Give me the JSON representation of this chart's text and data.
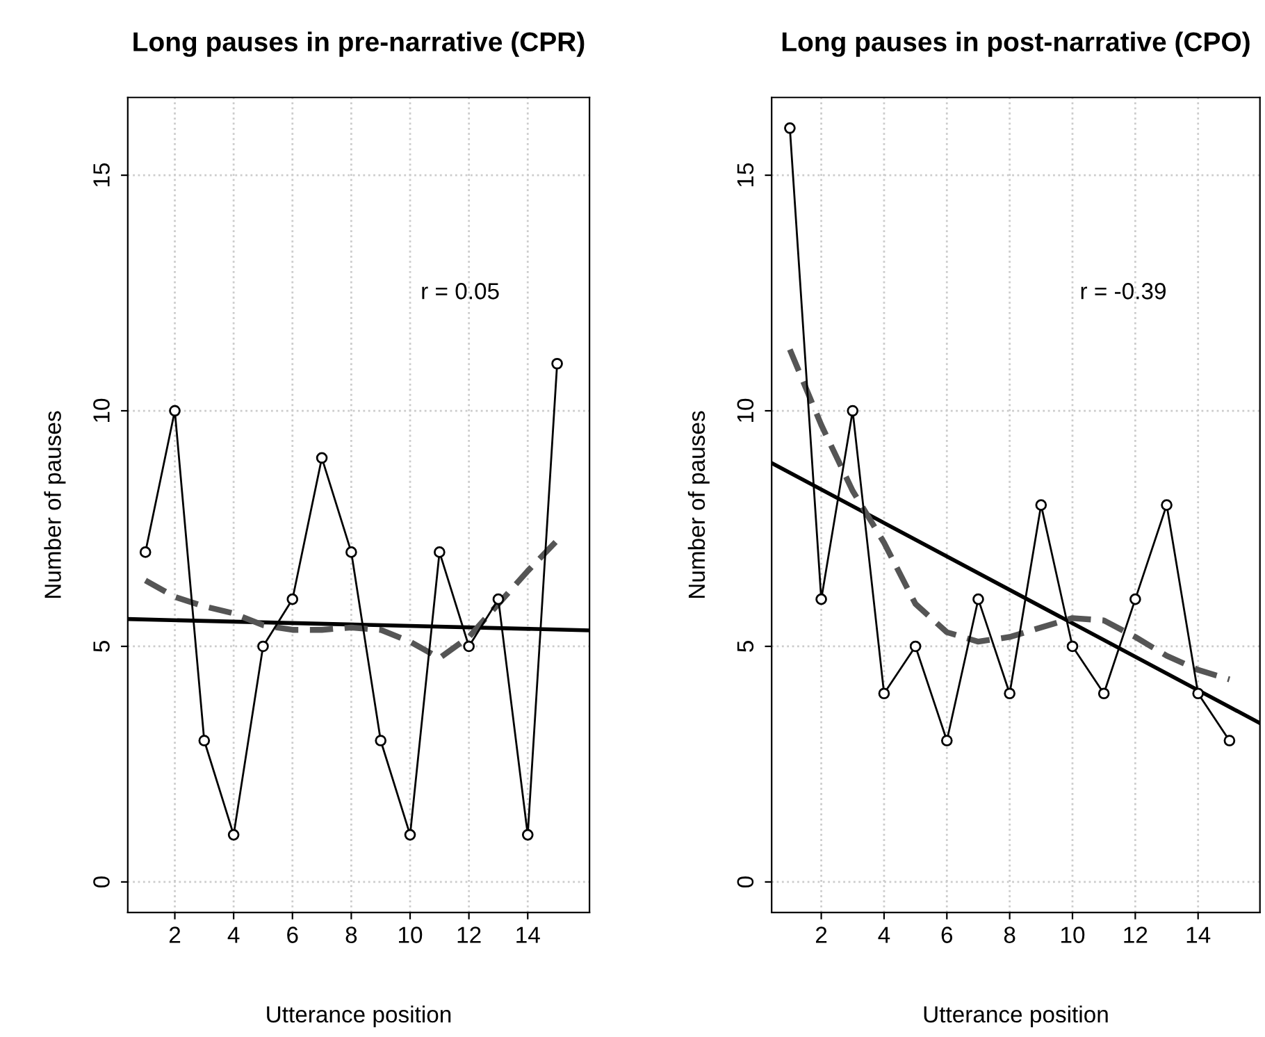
{
  "chart_data": [
    {
      "type": "line",
      "title": "Long pauses in pre-narrative (CPR)",
      "xlabel": "Utterance position",
      "ylabel": "Number of pauses",
      "xlim": [
        0.4,
        16.1
      ],
      "ylim": [
        -0.65,
        16.65
      ],
      "xticks": [
        2,
        4,
        6,
        8,
        10,
        12,
        14
      ],
      "yticks": [
        0,
        5,
        10,
        15
      ],
      "grid": true,
      "legend": false,
      "annotations": [
        "r = 0.05"
      ],
      "x": [
        1,
        2,
        3,
        4,
        5,
        6,
        7,
        8,
        9,
        10,
        11,
        12,
        13,
        14,
        15
      ],
      "series": [
        {
          "color": "#000000",
          "marker": "circle",
          "line_style": "solid",
          "values": [
            7,
            10,
            3,
            1,
            5,
            6,
            9,
            7,
            3,
            1,
            7,
            5,
            6,
            1,
            11
          ]
        },
        {
          "color": "#000000",
          "marker": "none",
          "line_style": "solid",
          "x": [
            0.4,
            16.1
          ],
          "values": [
            5.58,
            5.34
          ]
        },
        {
          "color": "#555555",
          "marker": "none",
          "line_style": "dashed",
          "values": [
            6.4,
            6.05,
            5.85,
            5.7,
            5.45,
            5.35,
            5.35,
            5.4,
            5.35,
            5.1,
            4.75,
            5.2,
            5.9,
            6.6,
            7.25
          ]
        }
      ]
    },
    {
      "type": "line",
      "title": "Long pauses in post-narrative (CPO)",
      "xlabel": "Utterance position",
      "ylabel": "Number of pauses",
      "xlim": [
        0.42,
        15.97
      ],
      "ylim": [
        -0.65,
        16.65
      ],
      "xticks": [
        2,
        4,
        6,
        8,
        10,
        12,
        14
      ],
      "yticks": [
        0,
        5,
        10,
        15
      ],
      "grid": true,
      "legend": false,
      "annotations": [
        "r = -0.39"
      ],
      "x": [
        1,
        2,
        3,
        4,
        5,
        6,
        7,
        8,
        9,
        10,
        11,
        12,
        13,
        14,
        15
      ],
      "series": [
        {
          "color": "#000000",
          "marker": "circle",
          "line_style": "solid",
          "values": [
            16,
            6,
            10,
            4,
            5,
            3,
            6,
            4,
            8,
            5,
            4,
            6,
            8,
            4,
            3
          ]
        },
        {
          "color": "#000000",
          "marker": "none",
          "line_style": "solid",
          "x": [
            0.42,
            15.97
          ],
          "values": [
            8.89,
            3.37
          ]
        },
        {
          "color": "#555555",
          "marker": "none",
          "line_style": "dashed",
          "values": [
            11.3,
            9.7,
            8.3,
            7.2,
            5.9,
            5.3,
            5.1,
            5.2,
            5.4,
            5.6,
            5.55,
            5.2,
            4.8,
            4.5,
            4.3
          ]
        }
      ]
    }
  ]
}
